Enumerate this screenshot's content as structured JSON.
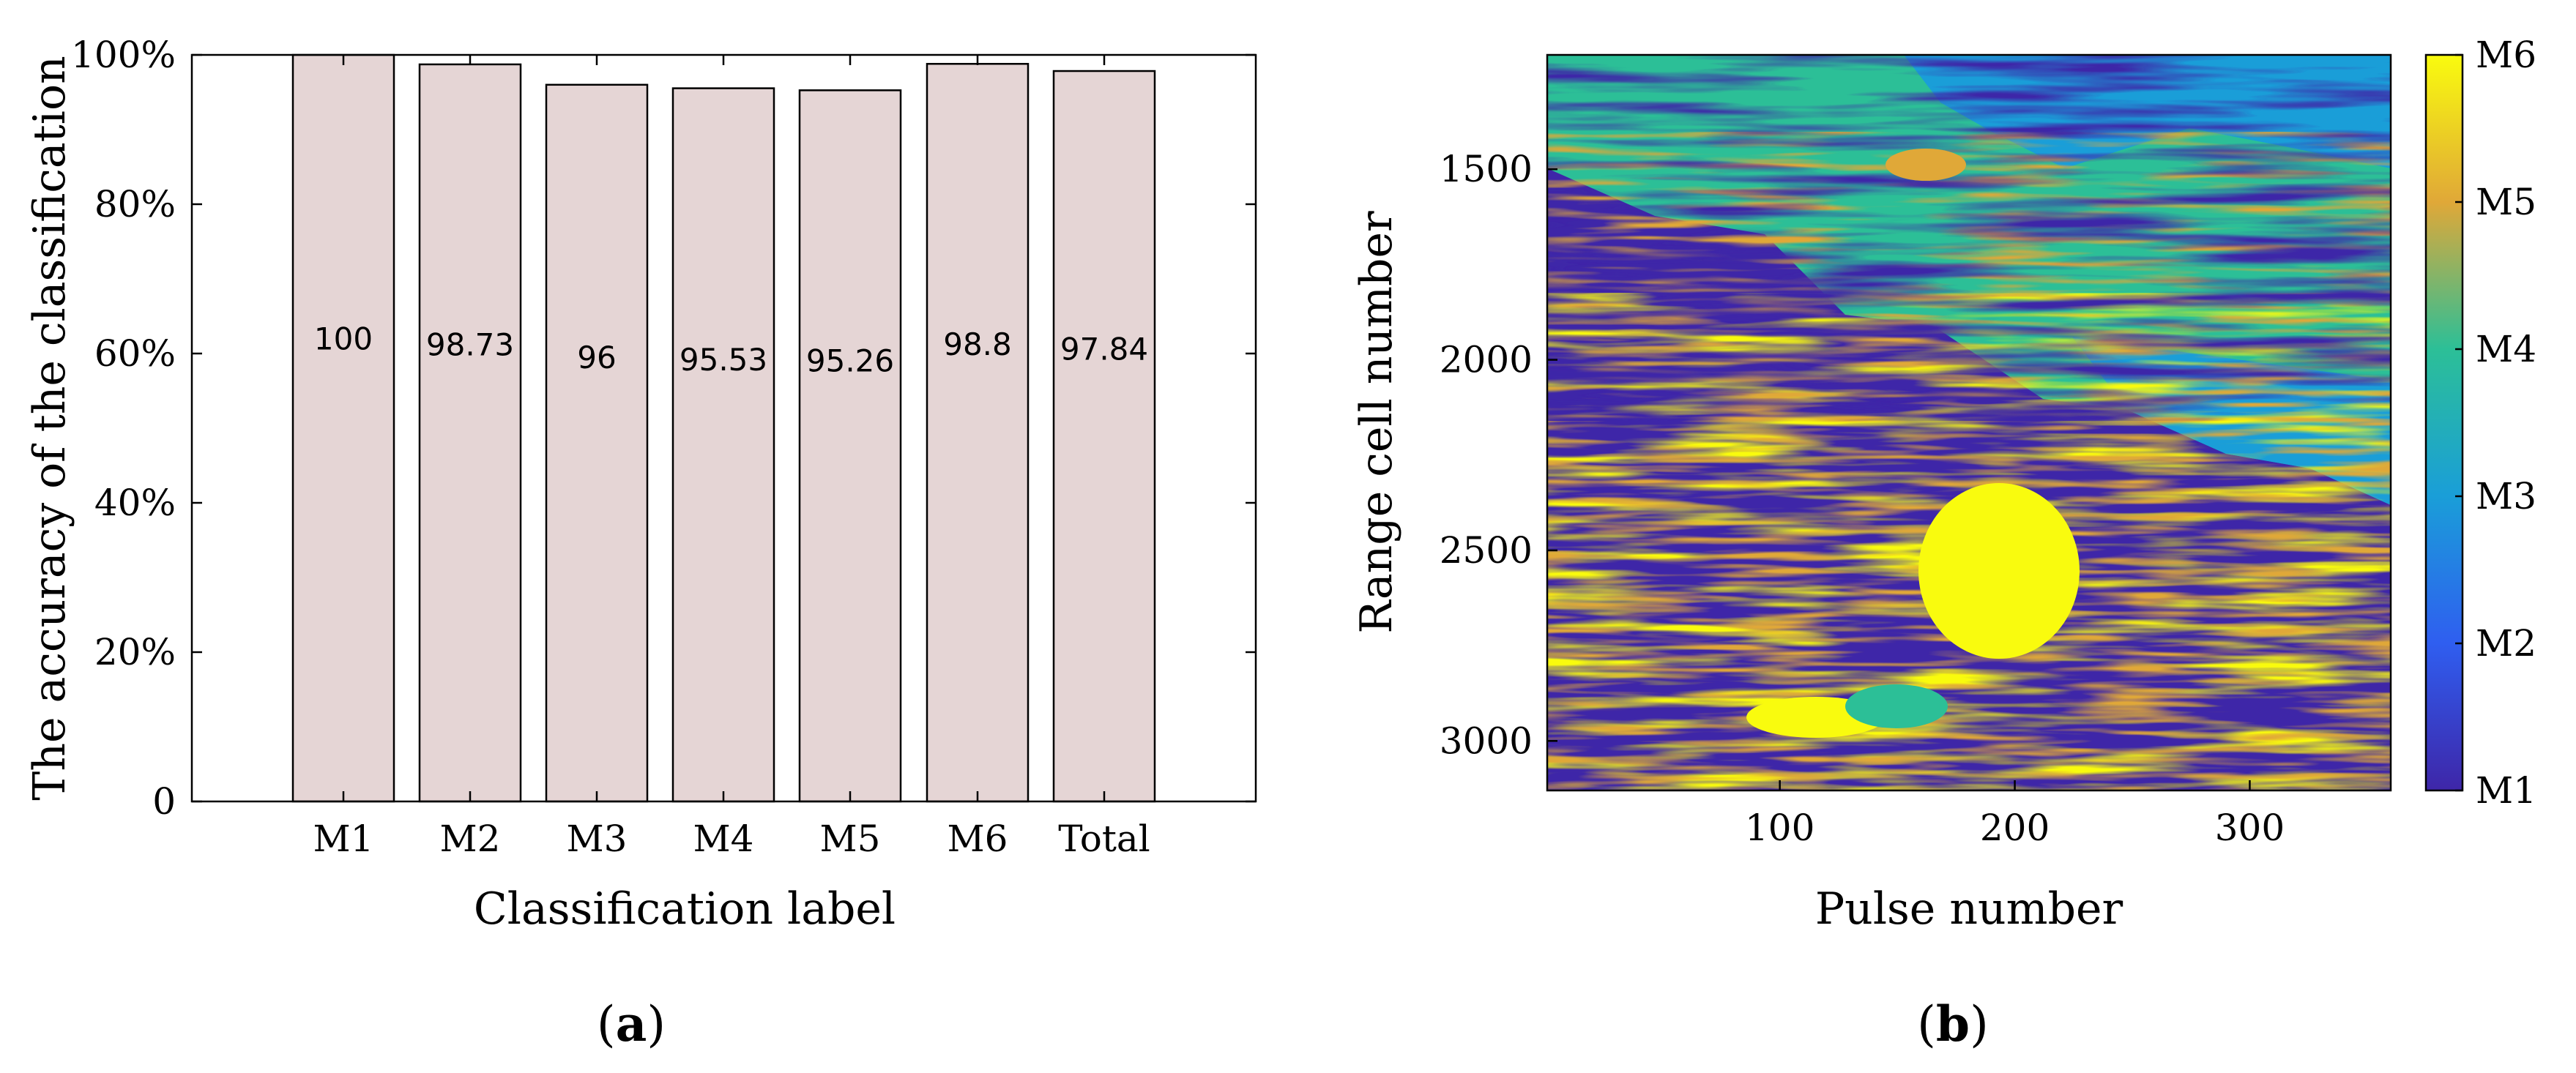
{
  "colors": {
    "bar_fill": "#e5d5d5",
    "colormap": [
      "#3e26a8",
      "#2f5ef0",
      "#1a9ed8",
      "#2cbf97",
      "#e0a838",
      "#f9fb0e"
    ]
  },
  "panels": {
    "a": {
      "letter": "a"
    },
    "b": {
      "letter": "b"
    }
  },
  "chart_data": [
    {
      "type": "bar",
      "title": "",
      "xlabel": "Classification label",
      "ylabel": "The accuracy of the classification",
      "categories": [
        "M1",
        "M2",
        "M3",
        "M4",
        "M5",
        "M6",
        "Total"
      ],
      "values": [
        100,
        98.73,
        96,
        95.53,
        95.26,
        98.8,
        97.84
      ],
      "data_labels": [
        "100",
        "98.73",
        "96",
        "95.53",
        "95.26",
        "98.8",
        "97.84"
      ],
      "ylim": [
        0,
        100
      ],
      "yticks": [
        0,
        20,
        40,
        60,
        80,
        100
      ],
      "yticklabels": [
        "0",
        "20%",
        "40%",
        "60%",
        "80%",
        "100%"
      ],
      "grid": false
    },
    {
      "type": "heatmap",
      "title": "",
      "xlabel": "Pulse number",
      "ylabel": "Range cell number",
      "xlim": [
        1,
        360
      ],
      "ylim": [
        1200,
        3130
      ],
      "y_reversed": true,
      "xticks": [
        100,
        200,
        300
      ],
      "xticklabels": [
        "100",
        "200",
        "300"
      ],
      "yticks": [
        1500,
        2000,
        2500,
        3000
      ],
      "yticklabels": [
        "1500",
        "2000",
        "2500",
        "3000"
      ],
      "colorbar": {
        "ticks": [
          1,
          2,
          3,
          4,
          5,
          6
        ],
        "ticklabels": [
          "M1",
          "M2",
          "M3",
          "M4",
          "M5",
          "M6"
        ],
        "location": "right"
      },
      "regions": [
        {
          "class": 1,
          "description": "dominant background (M1)"
        },
        {
          "class": 4,
          "description": "upper-right band (M4 / M3 mixture)"
        },
        {
          "class": 6,
          "description": "streaks in lower-left and centre (M6)"
        },
        {
          "class": 5,
          "description": "scattered streaks (M5)"
        }
      ],
      "grid": false
    }
  ]
}
